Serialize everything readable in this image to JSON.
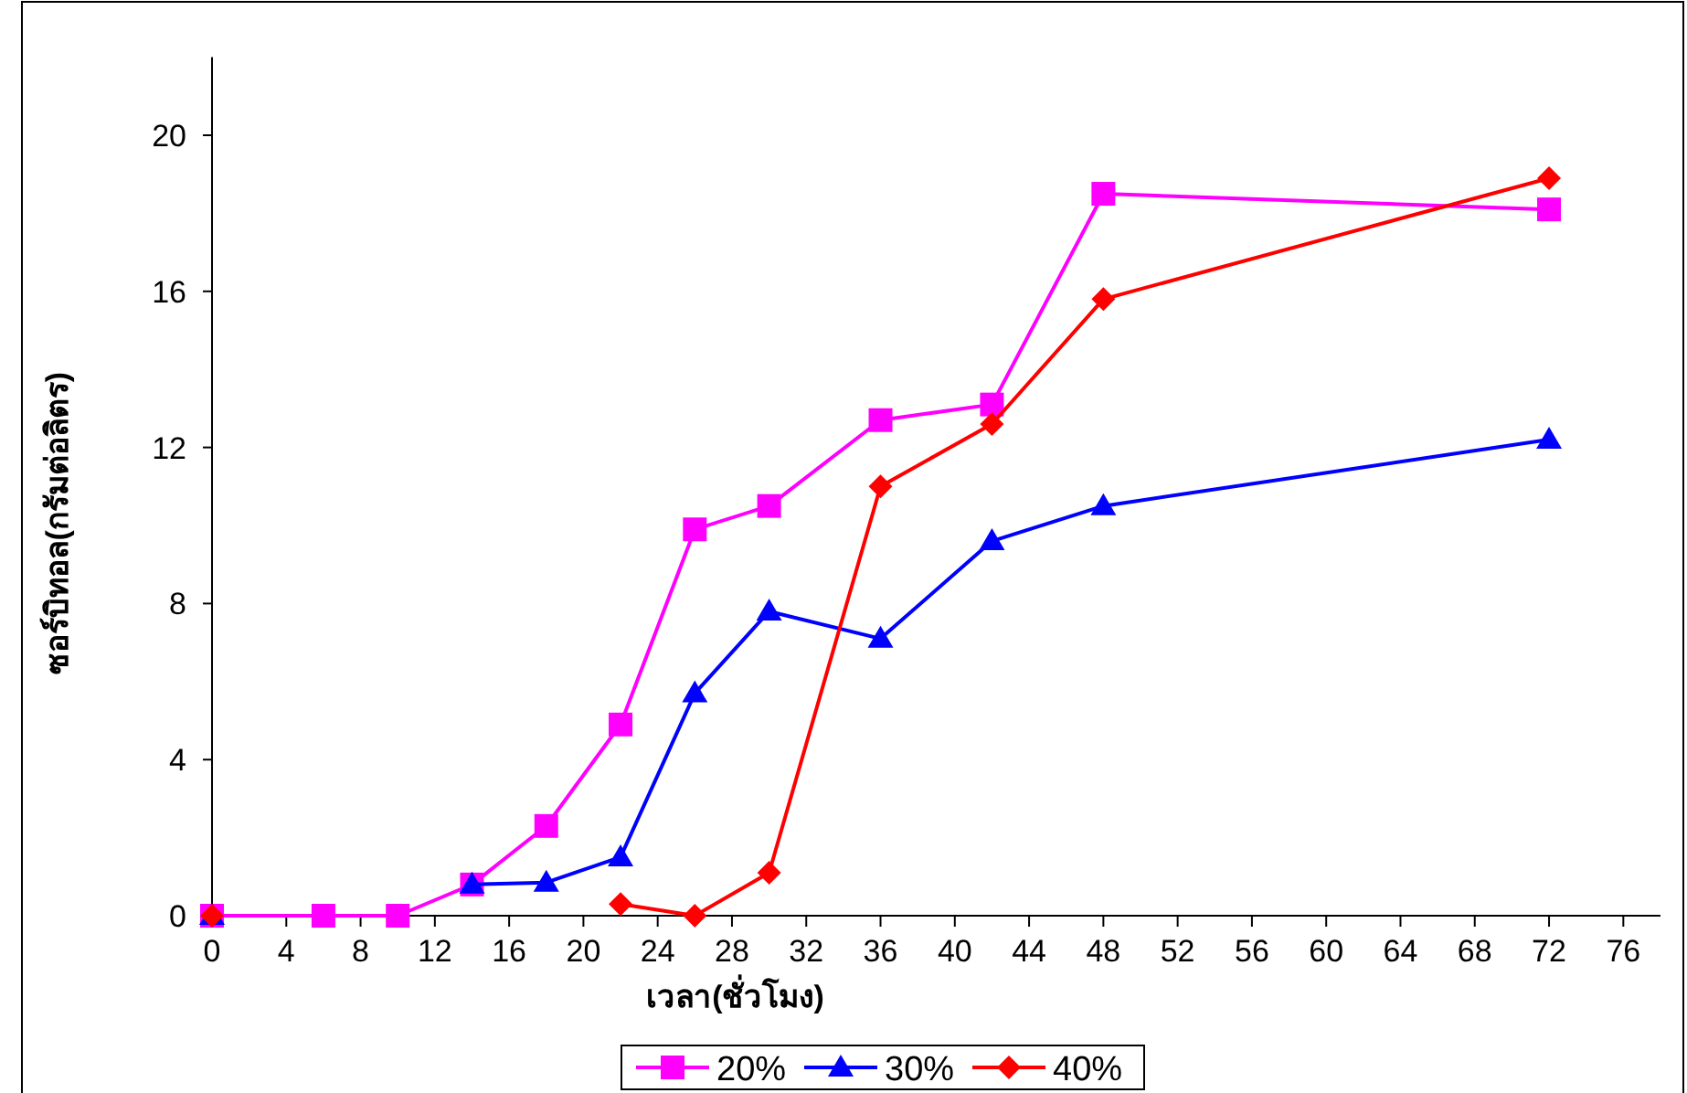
{
  "chart_data": {
    "type": "line",
    "xlabel": "เวลา(ชั่วโมง)",
    "ylabel": "ซอร์บิทอล(กรัมต่อลิตร)",
    "xlim": [
      0,
      78
    ],
    "ylim": [
      0,
      22
    ],
    "xticks": [
      0,
      4,
      8,
      12,
      16,
      20,
      24,
      28,
      32,
      36,
      40,
      44,
      48,
      52,
      56,
      60,
      64,
      68,
      72,
      76
    ],
    "yticks": [
      0,
      4,
      8,
      12,
      16,
      20
    ],
    "legend": "bottom",
    "line_style": "solid",
    "series": [
      {
        "name": "20%",
        "color": "#ff00ff",
        "marker": "square",
        "x": [
          0,
          6,
          10,
          14,
          18,
          22,
          26,
          30,
          36,
          42,
          48,
          72
        ],
        "values": [
          0,
          0,
          0,
          0.8,
          2.3,
          4.9,
          9.9,
          10.5,
          12.7,
          13.1,
          18.5,
          18.1
        ]
      },
      {
        "name": "30%",
        "color": "#0000ff",
        "marker": "triangle",
        "x": [
          0,
          10,
          14,
          18,
          22,
          26,
          30,
          36,
          42,
          48,
          72
        ],
        "values": [
          0,
          null,
          0.8,
          0.85,
          1.5,
          5.7,
          7.8,
          7.1,
          9.6,
          10.5,
          12.2
        ]
      },
      {
        "name": "40%",
        "color": "#ff0000",
        "marker": "diamond",
        "x": [
          0,
          10,
          22,
          26,
          30,
          36,
          42,
          48,
          72
        ],
        "values": [
          0,
          null,
          0.3,
          0,
          1.1,
          11,
          12.6,
          15.8,
          18.9
        ]
      }
    ]
  }
}
